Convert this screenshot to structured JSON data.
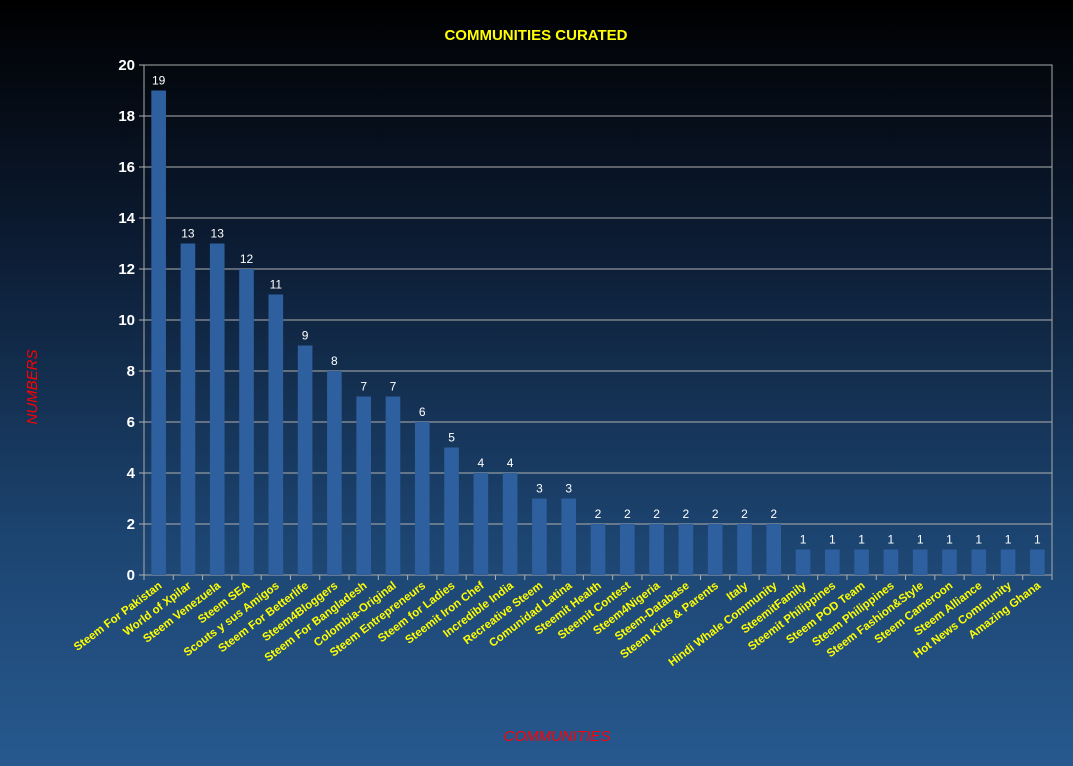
{
  "chart_data": {
    "type": "bar",
    "title": "COMMUNITIES CURATED",
    "xlabel": "COMMUNITIES",
    "ylabel": "NUMBERS",
    "ylim": [
      0,
      20
    ],
    "yticks": [
      0,
      2,
      4,
      6,
      8,
      10,
      12,
      14,
      16,
      18,
      20
    ],
    "grid": true,
    "categories": [
      "Steem For Pakistan",
      "World of Xpilar",
      "Steem Venezuela",
      "Steem SEA",
      "Scouts y sus Amigos",
      "Steem For Betterlife",
      "Steem4Bloggers",
      "Steem For Bangladesh",
      "Colombia-Original",
      "Steem Entrepreneurs",
      "Steem for Ladies",
      "Steemit Iron Chef",
      "Incredible India",
      "Recreative Steem",
      "Comunidad Latina",
      "Steemit Health",
      "Steemit Contest",
      "Steem4Nigeria",
      "Steem-Database",
      "Steem Kids & Parents",
      "Italy",
      "Hindi Whale Community",
      "SteemitFamily",
      "Steemit Philippines",
      "Steem POD Team",
      "Steem Philippines",
      "Steem Fashion&Style",
      "Steem Cameroon",
      "Steem Alliance",
      "Hot News Community",
      "Amazing Ghana"
    ],
    "values": [
      19,
      13,
      13,
      12,
      11,
      9,
      8,
      7,
      7,
      6,
      5,
      4,
      4,
      3,
      3,
      2,
      2,
      2,
      2,
      2,
      2,
      2,
      1,
      1,
      1,
      1,
      1,
      1,
      1,
      1,
      1
    ],
    "colors": {
      "bar": "#2e5f9e",
      "title": "#ffff00",
      "axis_label": "#ff0000",
      "category_label": "#ffff00",
      "value_label": "#ffffff"
    }
  }
}
